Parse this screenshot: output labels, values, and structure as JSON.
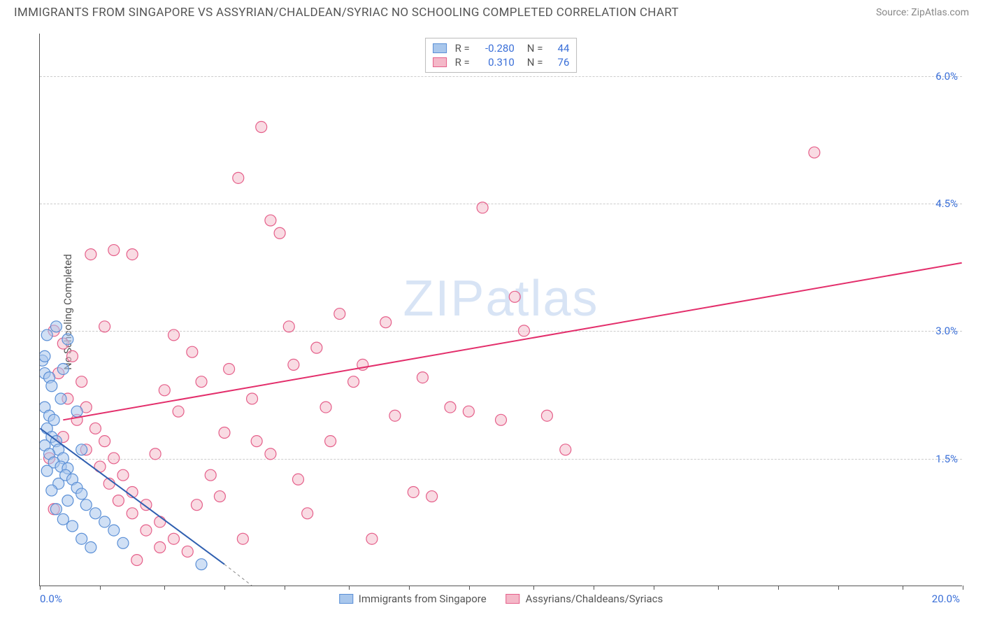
{
  "header": {
    "title": "IMMIGRANTS FROM SINGAPORE VS ASSYRIAN/CHALDEAN/SYRIAC NO SCHOOLING COMPLETED CORRELATION CHART",
    "source": "Source: ZipAtlas.com"
  },
  "chart": {
    "type": "scatter",
    "ylabel": "No Schooling Completed",
    "watermark": "ZIPatlas",
    "background_color": "#ffffff",
    "grid_color": "#cccccc",
    "axis_color": "#555555",
    "xlim": [
      0,
      20
    ],
    "ylim": [
      0,
      6.5
    ],
    "xtick_positions": [
      0,
      1.3,
      2.7,
      4.0,
      5.3,
      6.7,
      8.0,
      9.3,
      10.7,
      12.0,
      13.3,
      14.7,
      16.0,
      17.3,
      18.7,
      20
    ],
    "xtick_labels": {
      "0": "0.0%",
      "20": "20.0%"
    },
    "ytick_positions": [
      1.5,
      3.0,
      4.5,
      6.0
    ],
    "ytick_labels": [
      "1.5%",
      "3.0%",
      "4.5%",
      "6.0%"
    ],
    "series": [
      {
        "id": "singapore",
        "label": "Immigrants from Singapore",
        "R": "-0.280",
        "N": "44",
        "fill_color": "#a9c7ec",
        "stroke_color": "#5a8fd6",
        "fill_opacity": 0.55,
        "marker_radius": 8,
        "trend": {
          "x1": 0,
          "y1": 1.85,
          "x2": 4.0,
          "y2": 0.25,
          "x1_dash": 4.0,
          "y1_dash": 0.25,
          "x2_dash": 5.3,
          "y2_dash": -0.3,
          "color": "#2f5fb0",
          "width": 2
        },
        "points": [
          [
            0.05,
            2.65
          ],
          [
            0.1,
            2.7
          ],
          [
            0.15,
            2.95
          ],
          [
            0.1,
            2.5
          ],
          [
            0.2,
            2.45
          ],
          [
            0.25,
            2.35
          ],
          [
            0.1,
            2.1
          ],
          [
            0.2,
            2.0
          ],
          [
            0.3,
            1.95
          ],
          [
            0.15,
            1.85
          ],
          [
            0.25,
            1.75
          ],
          [
            0.35,
            1.7
          ],
          [
            0.1,
            1.65
          ],
          [
            0.4,
            1.6
          ],
          [
            0.2,
            1.55
          ],
          [
            0.5,
            1.5
          ],
          [
            0.3,
            1.45
          ],
          [
            0.45,
            1.4
          ],
          [
            0.6,
            1.38
          ],
          [
            0.15,
            1.35
          ],
          [
            0.55,
            1.3
          ],
          [
            0.7,
            1.25
          ],
          [
            0.4,
            1.2
          ],
          [
            0.8,
            1.15
          ],
          [
            0.25,
            1.12
          ],
          [
            0.9,
            1.08
          ],
          [
            0.6,
            1.0
          ],
          [
            1.0,
            0.95
          ],
          [
            0.35,
            0.9
          ],
          [
            1.2,
            0.85
          ],
          [
            0.5,
            0.78
          ],
          [
            1.4,
            0.75
          ],
          [
            0.7,
            0.7
          ],
          [
            1.6,
            0.65
          ],
          [
            0.9,
            0.55
          ],
          [
            1.8,
            0.5
          ],
          [
            1.1,
            0.45
          ],
          [
            0.45,
            2.2
          ],
          [
            0.6,
            2.9
          ],
          [
            0.35,
            3.05
          ],
          [
            3.5,
            0.25
          ],
          [
            0.5,
            2.55
          ],
          [
            0.8,
            2.05
          ],
          [
            0.9,
            1.6
          ]
        ]
      },
      {
        "id": "assyrian",
        "label": "Assyrians/Chaldeans/Syriacs",
        "R": "0.310",
        "N": "76",
        "fill_color": "#f4b8c8",
        "stroke_color": "#e55f8a",
        "fill_opacity": 0.5,
        "marker_radius": 8,
        "trend": {
          "x1": 0.5,
          "y1": 1.95,
          "x2": 20,
          "y2": 3.8,
          "color": "#e32e6b",
          "width": 2
        },
        "points": [
          [
            0.3,
            3.0
          ],
          [
            0.5,
            2.85
          ],
          [
            0.7,
            2.7
          ],
          [
            0.4,
            2.5
          ],
          [
            0.9,
            2.4
          ],
          [
            0.6,
            2.2
          ],
          [
            1.0,
            2.1
          ],
          [
            0.8,
            1.95
          ],
          [
            1.2,
            1.85
          ],
          [
            0.5,
            1.75
          ],
          [
            1.4,
            1.7
          ],
          [
            1.0,
            1.6
          ],
          [
            1.6,
            1.5
          ],
          [
            1.3,
            1.4
          ],
          [
            1.8,
            1.3
          ],
          [
            1.5,
            1.2
          ],
          [
            2.0,
            1.1
          ],
          [
            1.7,
            1.0
          ],
          [
            2.3,
            0.95
          ],
          [
            2.0,
            0.85
          ],
          [
            2.6,
            0.75
          ],
          [
            2.3,
            0.65
          ],
          [
            2.9,
            0.55
          ],
          [
            2.6,
            0.45
          ],
          [
            3.2,
            0.4
          ],
          [
            2.1,
            0.3
          ],
          [
            1.6,
            3.95
          ],
          [
            2.0,
            3.9
          ],
          [
            2.9,
            2.95
          ],
          [
            3.3,
            2.75
          ],
          [
            3.5,
            2.4
          ],
          [
            3.7,
            1.3
          ],
          [
            4.1,
            2.55
          ],
          [
            4.3,
            4.8
          ],
          [
            4.8,
            5.4
          ],
          [
            4.6,
            2.2
          ],
          [
            5.0,
            4.3
          ],
          [
            5.2,
            4.15
          ],
          [
            5.4,
            3.05
          ],
          [
            5.6,
            1.25
          ],
          [
            5.8,
            0.85
          ],
          [
            6.0,
            2.8
          ],
          [
            6.2,
            2.1
          ],
          [
            6.5,
            3.2
          ],
          [
            6.8,
            2.4
          ],
          [
            7.2,
            0.55
          ],
          [
            7.5,
            3.1
          ],
          [
            7.7,
            2.0
          ],
          [
            8.1,
            1.1
          ],
          [
            8.3,
            2.45
          ],
          [
            8.5,
            1.05
          ],
          [
            8.9,
            2.1
          ],
          [
            9.3,
            2.05
          ],
          [
            9.6,
            4.45
          ],
          [
            10.0,
            1.95
          ],
          [
            10.3,
            3.4
          ],
          [
            10.5,
            3.0
          ],
          [
            11.0,
            2.0
          ],
          [
            11.4,
            1.6
          ],
          [
            16.8,
            5.1
          ],
          [
            1.1,
            3.9
          ],
          [
            1.4,
            3.05
          ],
          [
            0.2,
            1.5
          ],
          [
            0.3,
            0.9
          ],
          [
            3.0,
            2.05
          ],
          [
            3.4,
            0.95
          ],
          [
            4.0,
            1.8
          ],
          [
            4.4,
            0.55
          ],
          [
            5.0,
            1.55
          ],
          [
            5.5,
            2.6
          ],
          [
            6.3,
            1.7
          ],
          [
            7.0,
            2.6
          ],
          [
            2.5,
            1.55
          ],
          [
            2.7,
            2.3
          ],
          [
            3.9,
            1.05
          ],
          [
            4.7,
            1.7
          ]
        ]
      }
    ]
  }
}
